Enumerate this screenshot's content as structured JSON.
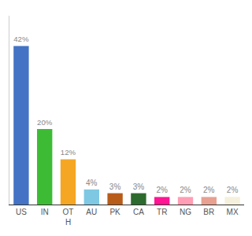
{
  "chart_data": {
    "type": "bar",
    "categories": [
      "US",
      "IN",
      "OT\nH",
      "AU",
      "PK",
      "CA",
      "TR",
      "NG",
      "BR",
      "MX"
    ],
    "values": [
      42,
      20,
      12,
      4,
      3,
      3,
      2,
      2,
      2,
      2
    ],
    "value_labels": [
      "42%",
      "20%",
      "12%",
      "4%",
      "3%",
      "3%",
      "2%",
      "2%",
      "2%",
      "2%"
    ],
    "colors": [
      "#4472c4",
      "#3dbb35",
      "#f5a623",
      "#7ec8e3",
      "#b85c1a",
      "#2d6a2d",
      "#ff1493",
      "#ff9eb5",
      "#e8a090",
      "#f5f0dc"
    ],
    "ylim": [
      0,
      50
    ],
    "yticks": [],
    "grid": false,
    "data_labels": true,
    "tick_labels": "x"
  }
}
